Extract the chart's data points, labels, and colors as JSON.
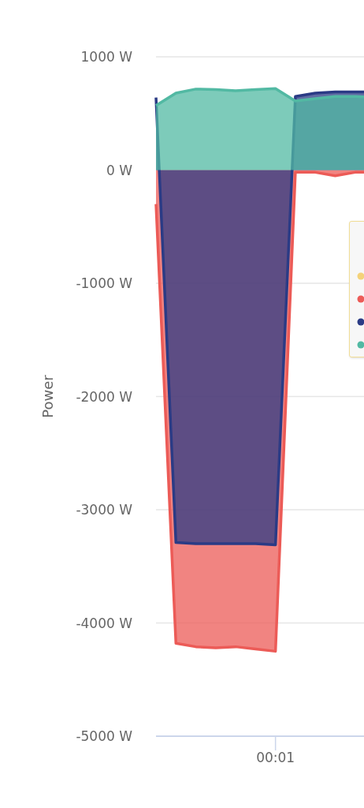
{
  "chart_data": {
    "type": "area",
    "ylabel": "Power",
    "categories": [
      null,
      null,
      null,
      null,
      null,
      null,
      "00:01",
      null,
      null,
      null,
      null,
      null
    ],
    "series": [
      {
        "color": "#f4d27a",
        "values": [
          null,
          null,
          null,
          null,
          null,
          null,
          null,
          null,
          null,
          null,
          null,
          null
        ]
      },
      {
        "color": "#ec5b57",
        "values": [
          -300,
          -4180,
          -4210,
          -4220,
          -4210,
          -4230,
          -4250,
          -20,
          -20,
          -50,
          -20,
          -20
        ]
      },
      {
        "color": "#2b3b85",
        "values": [
          640,
          -3290,
          -3300,
          -3300,
          -3300,
          -3300,
          -3310,
          650,
          680,
          690,
          690,
          690
        ]
      },
      {
        "color": "#52b9a3",
        "values": [
          570,
          680,
          715,
          710,
          700,
          710,
          720,
          610,
          630,
          650,
          650,
          640
        ]
      }
    ],
    "ylim": [
      -5000,
      1000
    ],
    "yticks": [
      {
        "value": -5000,
        "label": "-5000 W"
      },
      {
        "value": -4000,
        "label": "-4000 W"
      },
      {
        "value": -3000,
        "label": "-3000 W"
      },
      {
        "value": -2000,
        "label": "-2000 W"
      },
      {
        "value": -1000,
        "label": "-1000 W"
      },
      {
        "value": 0,
        "label": "0 W"
      },
      {
        "value": 1000,
        "label": "1000 W"
      }
    ],
    "grid": "y"
  }
}
